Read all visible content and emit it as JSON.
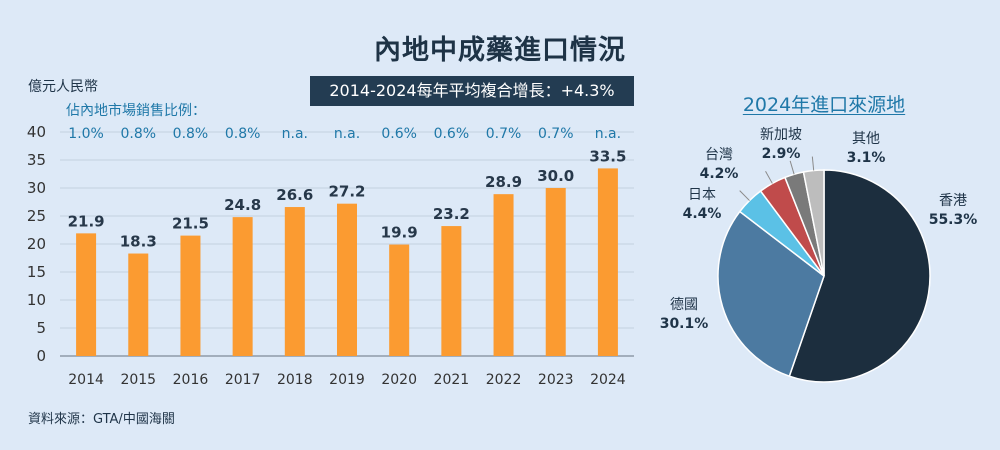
{
  "title": "內地中成藥進口情況",
  "unit_label": "億元人民幣",
  "share_label": "佔內地市場銷售比例：",
  "cagr_text": "2014-2024每年平均複合增長：+4.3%",
  "source": "資料來源：GTA/中國海關",
  "chart_data": [
    {
      "type": "bar",
      "title": "內地中成藥進口情況",
      "ylabel": "億元人民幣",
      "xlabel": "",
      "ylim": [
        0,
        40
      ],
      "yticks": [
        0,
        5,
        10,
        15,
        20,
        25,
        30,
        35,
        40
      ],
      "categories": [
        "2014",
        "2015",
        "2016",
        "2017",
        "2018",
        "2019",
        "2020",
        "2021",
        "2022",
        "2023",
        "2024"
      ],
      "values": [
        21.9,
        18.3,
        21.5,
        24.8,
        26.6,
        27.2,
        19.9,
        23.2,
        28.9,
        30.0,
        33.5
      ],
      "value_labels": [
        "21.9",
        "18.3",
        "21.5",
        "24.8",
        "26.6",
        "27.2",
        "19.9",
        "23.2",
        "28.9",
        "30.0",
        "33.5"
      ],
      "market_share": [
        "1.0%",
        "0.8%",
        "0.8%",
        "0.8%",
        "n.a.",
        "n.a.",
        "0.6%",
        "0.6%",
        "0.7%",
        "0.7%",
        "n.a."
      ],
      "bar_color": "#fb9b31",
      "grid": true
    },
    {
      "type": "pie",
      "title": "2024年進口來源地",
      "slices": [
        {
          "name": "香港",
          "value": 55.3,
          "label": "55.3%",
          "color": "#1c2e3e"
        },
        {
          "name": "德國",
          "value": 30.1,
          "label": "30.1%",
          "color": "#4c7aa1"
        },
        {
          "name": "日本",
          "value": 4.4,
          "label": "4.4%",
          "color": "#5bc1e6"
        },
        {
          "name": "台灣",
          "value": 4.2,
          "label": "4.2%",
          "color": "#c04b4b"
        },
        {
          "name": "新加坡",
          "value": 2.9,
          "label": "2.9%",
          "color": "#7a7a7a"
        },
        {
          "name": "其他",
          "value": 3.1,
          "label": "3.1%",
          "color": "#bdbdbd"
        }
      ]
    }
  ]
}
